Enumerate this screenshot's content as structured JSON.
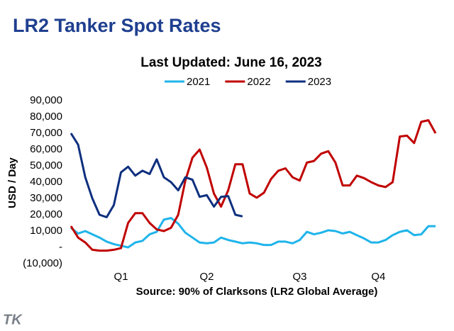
{
  "title": "LR2 Tanker Spot Rates",
  "logo": "TK",
  "chart_data": {
    "type": "line",
    "title": "Last Updated: June 16, 2023",
    "y_label": "USD / Day",
    "x_label": "Source: 90% of Clarksons (LR2 Global Average)",
    "categories": [
      null,
      null,
      null,
      null,
      null,
      null,
      null,
      "Q1",
      null,
      null,
      null,
      null,
      null,
      null,
      null,
      null,
      null,
      null,
      null,
      "Q2",
      null,
      null,
      null,
      null,
      null,
      null,
      null,
      null,
      null,
      null,
      null,
      null,
      "Q3",
      null,
      null,
      null,
      null,
      null,
      null,
      null,
      null,
      null,
      null,
      "Q4",
      null,
      null,
      null,
      null,
      null,
      null,
      null,
      null
    ],
    "ylim": [
      -10000,
      90000
    ],
    "yticks": [
      {
        "value": -10000,
        "label": "(10,000)"
      },
      {
        "value": 0,
        "label": "-"
      },
      {
        "value": 10000,
        "label": "10,000"
      },
      {
        "value": 20000,
        "label": "20,000"
      },
      {
        "value": 30000,
        "label": "30,000"
      },
      {
        "value": 40000,
        "label": "40,000"
      },
      {
        "value": 50000,
        "label": "50,000"
      },
      {
        "value": 60000,
        "label": "60,000"
      },
      {
        "value": 70000,
        "label": "70,000"
      },
      {
        "value": 80000,
        "label": "80,000"
      },
      {
        "value": 90000,
        "label": "90,000"
      }
    ],
    "grid": false,
    "legend": "top",
    "series": [
      {
        "name": "2021",
        "color": "#1fb4ea",
        "values": [
          12000,
          8500,
          10000,
          8000,
          6000,
          3500,
          2000,
          1000,
          0,
          3000,
          4000,
          8000,
          9500,
          17000,
          18000,
          14500,
          9000,
          6000,
          3000,
          2500,
          3000,
          6000,
          4500,
          3500,
          2500,
          3000,
          2500,
          1500,
          1500,
          3500,
          3500,
          2500,
          4500,
          9500,
          8000,
          9000,
          10500,
          10000,
          8500,
          9500,
          7500,
          5500,
          3000,
          3000,
          4500,
          7500,
          9500,
          10500,
          7500,
          8000,
          13000,
          13000
        ]
      },
      {
        "name": "2022",
        "color": "#c00000",
        "values": [
          13000,
          6000,
          3000,
          -1500,
          -2000,
          -2000,
          -1500,
          -500,
          15000,
          21000,
          21000,
          15000,
          11000,
          10000,
          12000,
          20000,
          41000,
          55000,
          60000,
          49000,
          33000,
          25000,
          35000,
          51000,
          51000,
          33000,
          30500,
          33500,
          42000,
          47000,
          48500,
          43000,
          41000,
          52000,
          53000,
          57500,
          59000,
          52000,
          38000,
          38000,
          44000,
          42500,
          40000,
          38000,
          37000,
          40000,
          68000,
          68500,
          64000,
          77000,
          78000,
          70000
        ]
      },
      {
        "name": "2023",
        "color": "#0d2f7e",
        "values": [
          70000,
          63000,
          43000,
          30000,
          20000,
          18500,
          26000,
          46000,
          49500,
          44000,
          47000,
          45000,
          54000,
          43000,
          40000,
          35000,
          43000,
          41500,
          31000,
          32000,
          25000,
          31000,
          31500,
          20000,
          19000,
          null,
          null,
          null,
          null,
          null,
          null,
          null,
          null,
          null,
          null,
          null,
          null,
          null,
          null,
          null,
          null,
          null,
          null,
          null,
          null,
          null,
          null,
          null,
          null,
          null,
          null,
          null
        ]
      }
    ]
  }
}
